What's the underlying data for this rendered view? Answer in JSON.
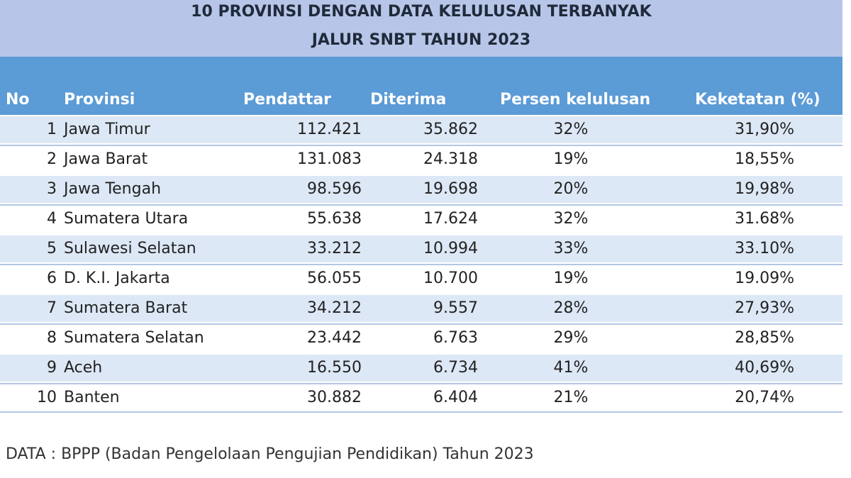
{
  "title": {
    "line1": "10 PROVINSI DENGAN DATA KELULUSAN  TERBANYAK",
    "line2": "JALUR SNBT TAHUN 2023"
  },
  "columns": {
    "no": "No",
    "provinsi": "Provinsi",
    "pendaftar": "Pendattar",
    "diterima": "Diterima",
    "persen": "Persen kelulusan",
    "keketatan": "Keketatan (%)"
  },
  "rows": [
    {
      "no": "1",
      "provinsi": "Jawa Timur",
      "pendaftar": "112.421",
      "diterima": "35.862",
      "persen": "32%",
      "keketatan": "31,90%"
    },
    {
      "no": "2",
      "provinsi": "Jawa Barat",
      "pendaftar": "131.083",
      "diterima": "24.318",
      "persen": "19%",
      "keketatan": "18,55%"
    },
    {
      "no": "3",
      "provinsi": "Jawa Tengah",
      "pendaftar": "98.596",
      "diterima": "19.698",
      "persen": "20%",
      "keketatan": "19,98%"
    },
    {
      "no": "4",
      "provinsi": "Sumatera Utara",
      "pendaftar": "55.638",
      "diterima": "17.624",
      "persen": "32%",
      "keketatan": "31.68%"
    },
    {
      "no": "5",
      "provinsi": "Sulawesi Selatan",
      "pendaftar": "33.212",
      "diterima": "10.994",
      "persen": "33%",
      "keketatan": "33.10%"
    },
    {
      "no": "6",
      "provinsi": "D. K.I. Jakarta",
      "pendaftar": "56.055",
      "diterima": "10.700",
      "persen": "19%",
      "keketatan": "19.09%"
    },
    {
      "no": "7",
      "provinsi": "Sumatera Barat",
      "pendaftar": "34.212",
      "diterima": "9.557",
      "persen": "28%",
      "keketatan": "27,93%"
    },
    {
      "no": "8",
      "provinsi": "Sumatera Selatan",
      "pendaftar": "23.442",
      "diterima": "6.763",
      "persen": "29%",
      "keketatan": "28,85%"
    },
    {
      "no": "9",
      "provinsi": "Aceh",
      "pendaftar": "16.550",
      "diterima": "6.734",
      "persen": "41%",
      "keketatan": "40,69%"
    },
    {
      "no": "10",
      "provinsi": "Banten",
      "pendaftar": "30.882",
      "diterima": "6.404",
      "persen": "21%",
      "keketatan": "20,74%"
    }
  ],
  "footnote": "DATA : BPPP (Badan Pengelolaan Pengujian Pendidikan) Tahun 2023",
  "colors": {
    "title_bg": "#b7c6e8",
    "header_bg": "#5b9bd6",
    "row_alt_bg": "#dde8f6"
  }
}
